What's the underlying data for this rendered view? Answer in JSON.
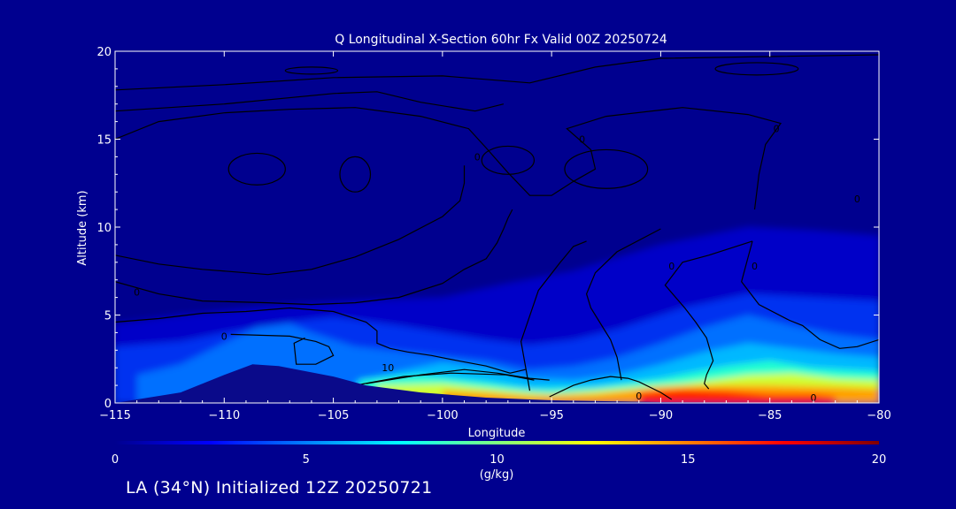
{
  "chart_data": {
    "type": "heatmap",
    "title": "Q Longitudinal X-Section 60hr  Fx Valid 00Z 20250724",
    "xlabel": "Longitude",
    "ylabel": "Altitude (km)",
    "xlim": [
      -115,
      -80
    ],
    "ylim": [
      0,
      20
    ],
    "x_ticks": [
      -115,
      -110,
      -105,
      -100,
      -95,
      -90,
      -85,
      -80
    ],
    "x_tick_labels": [
      "−115",
      "−110",
      "−105",
      "−100",
      "−95",
      "−90",
      "−85",
      "−80"
    ],
    "y_ticks": [
      0,
      5,
      10,
      15,
      20
    ],
    "y_tick_labels": [
      "0",
      "5",
      "10",
      "15",
      "20"
    ],
    "terrain": [
      {
        "lon": -115,
        "alt": 0.0
      },
      {
        "lon": -112,
        "alt": 0.6
      },
      {
        "lon": -110,
        "alt": 1.6
      },
      {
        "lon": -108.7,
        "alt": 2.2
      },
      {
        "lon": -107.5,
        "alt": 2.1
      },
      {
        "lon": -105,
        "alt": 1.5
      },
      {
        "lon": -103.5,
        "alt": 1.0
      },
      {
        "lon": -101,
        "alt": 0.6
      },
      {
        "lon": -98,
        "alt": 0.3
      },
      {
        "lon": -95,
        "alt": 0.15
      },
      {
        "lon": -90,
        "alt": 0.05
      },
      {
        "lon": -80,
        "alt": 0.0
      }
    ],
    "moisture_layers": [
      {
        "level": 1,
        "points": [
          [
            -115,
            0
          ],
          [
            -115,
            4.5
          ],
          [
            -112,
            5
          ],
          [
            -108,
            5.5
          ],
          [
            -104,
            5.8
          ],
          [
            -100,
            6
          ],
          [
            -97,
            6.8
          ],
          [
            -94,
            7.5
          ],
          [
            -90,
            9
          ],
          [
            -86,
            10
          ],
          [
            -83,
            9.8
          ],
          [
            -80,
            9.5
          ],
          [
            -80,
            0
          ]
        ]
      },
      {
        "level": 2,
        "points": [
          [
            -115,
            0
          ],
          [
            -115,
            3.2
          ],
          [
            -112,
            3.5
          ],
          [
            -110,
            4
          ],
          [
            -107,
            4.6
          ],
          [
            -105,
            4.9
          ],
          [
            -102,
            4.4
          ],
          [
            -100,
            4.0
          ],
          [
            -98,
            3.6
          ],
          [
            -96,
            3.3
          ],
          [
            -94,
            3.6
          ],
          [
            -92,
            4.2
          ],
          [
            -89,
            5.4
          ],
          [
            -86,
            6.2
          ],
          [
            -83,
            6.0
          ],
          [
            -80,
            5.8
          ],
          [
            -80,
            0
          ]
        ]
      },
      {
        "level": 3,
        "points": [
          [
            -114,
            0
          ],
          [
            -114,
            1.6
          ],
          [
            -112,
            2.2
          ],
          [
            -110,
            3.4
          ],
          [
            -108.5,
            4.3
          ],
          [
            -107,
            4.5
          ],
          [
            -106,
            4.0
          ],
          [
            -104,
            3.2
          ],
          [
            -101,
            2.8
          ],
          [
            -98,
            2.4
          ],
          [
            -96,
            1.9
          ],
          [
            -94,
            2.1
          ],
          [
            -92,
            2.6
          ],
          [
            -90,
            3.4
          ],
          [
            -88,
            4.3
          ],
          [
            -86,
            5.0
          ],
          [
            -84,
            4.4
          ],
          [
            -82,
            3.9
          ],
          [
            -80,
            3.6
          ],
          [
            -80,
            0
          ]
        ]
      },
      {
        "level": 4,
        "points": [
          [
            -104,
            1.2
          ],
          [
            -102,
            1.8
          ],
          [
            -100,
            2.3
          ],
          [
            -98,
            2.0
          ],
          [
            -96,
            1.4
          ],
          [
            -94,
            1.3
          ],
          [
            -92,
            1.6
          ],
          [
            -90,
            2.2
          ],
          [
            -88,
            2.9
          ],
          [
            -86,
            3.4
          ],
          [
            -84,
            3.1
          ],
          [
            -82,
            2.8
          ],
          [
            -80,
            2.6
          ],
          [
            -80,
            0
          ],
          [
            -104,
            0
          ]
        ]
      },
      {
        "level": 5,
        "points": [
          [
            -103.8,
            1.3
          ],
          [
            -101,
            1.6
          ],
          [
            -98,
            1.2
          ],
          [
            -96,
            0.8
          ],
          [
            -93,
            0.9
          ],
          [
            -90,
            1.4
          ],
          [
            -87,
            2.1
          ],
          [
            -85,
            2.4
          ],
          [
            -83,
            2.0
          ],
          [
            -80,
            1.8
          ],
          [
            -80,
            0
          ],
          [
            -103.8,
            0
          ]
        ]
      },
      {
        "level": 6,
        "points": [
          [
            -103,
            1.0
          ],
          [
            -100,
            1.1
          ],
          [
            -97,
            0.7
          ],
          [
            -95,
            0.5
          ],
          [
            -92,
            0.8
          ],
          [
            -89,
            1.1
          ],
          [
            -86,
            1.6
          ],
          [
            -84,
            1.7
          ],
          [
            -82,
            1.4
          ],
          [
            -80,
            1.3
          ],
          [
            -80,
            0
          ],
          [
            -103,
            0
          ]
        ]
      },
      {
        "level": 7,
        "points": [
          [
            -100,
            0.7
          ],
          [
            -98,
            0.6
          ],
          [
            -96,
            0.4
          ],
          [
            -93,
            0.5
          ],
          [
            -90,
            0.9
          ],
          [
            -87,
            1.0
          ],
          [
            -85,
            1.0
          ],
          [
            -82,
            0.9
          ],
          [
            -80,
            0.8
          ],
          [
            -80,
            0
          ],
          [
            -100,
            0
          ]
        ]
      },
      {
        "level": 8,
        "points": [
          [
            -91,
            0.6
          ],
          [
            -89,
            0.8
          ],
          [
            -87,
            0.7
          ],
          [
            -85,
            0.5
          ],
          [
            -83,
            0.5
          ],
          [
            -82,
            0.35
          ],
          [
            -82,
            0
          ],
          [
            -91,
            0
          ]
        ]
      }
    ],
    "contours": [
      [
        [
          -115,
          17.8
        ],
        [
          -110,
          18.1
        ],
        [
          -105,
          18.5
        ],
        [
          -100,
          18.6
        ],
        [
          -96,
          18.2
        ],
        [
          -93,
          19.1
        ],
        [
          -90,
          19.6
        ],
        [
          -85,
          19.7
        ],
        [
          -80,
          19.8
        ]
      ],
      [
        [
          -115,
          16.6
        ],
        [
          -110,
          17
        ],
        [
          -105,
          17.6
        ],
        [
          -103,
          17.7
        ],
        [
          -101,
          17.1
        ],
        [
          -98.5,
          16.6
        ],
        [
          -97.2,
          17
        ]
      ],
      [
        [
          -115,
          15
        ],
        [
          -113,
          16
        ],
        [
          -110,
          16.5
        ],
        [
          -107,
          16.7
        ],
        [
          -104,
          16.8
        ],
        [
          -101,
          16.3
        ],
        [
          -98.8,
          15.6
        ],
        [
          -98,
          14.5
        ],
        [
          -97,
          13.1
        ],
        [
          -96,
          11.8
        ],
        [
          -95,
          11.8
        ],
        [
          -94,
          12.6
        ],
        [
          -93,
          13.3
        ],
        [
          -93.2,
          14.4
        ],
        [
          -94.3,
          15.6
        ],
        [
          -92.5,
          16.3
        ],
        [
          -89,
          16.8
        ],
        [
          -86,
          16.4
        ],
        [
          -84.5,
          15.9
        ],
        [
          -85.2,
          14.7
        ],
        [
          -85.5,
          13
        ],
        [
          -85.7,
          11
        ]
      ],
      [
        [
          -115,
          8.4
        ],
        [
          -113,
          7.9
        ],
        [
          -111,
          7.6
        ],
        [
          -109,
          7.4
        ],
        [
          -108,
          7.3
        ],
        [
          -106,
          7.6
        ],
        [
          -104,
          8.3
        ],
        [
          -102,
          9.3
        ],
        [
          -100,
          10.6
        ],
        [
          -99.2,
          11.5
        ],
        [
          -99,
          12.5
        ],
        [
          -99,
          13.5
        ]
      ],
      [
        [
          -115,
          6.9
        ],
        [
          -113,
          6.2
        ],
        [
          -111,
          5.8
        ],
        [
          -108,
          5.7
        ],
        [
          -106,
          5.6
        ],
        [
          -104,
          5.7
        ],
        [
          -102,
          6
        ],
        [
          -100,
          6.8
        ],
        [
          -99,
          7.6
        ],
        [
          -98,
          8.2
        ],
        [
          -97.5,
          9.1
        ],
        [
          -97.2,
          9.9
        ],
        [
          -97,
          10.5
        ],
        [
          -96.8,
          11
        ]
      ],
      [
        [
          -115,
          4.6
        ],
        [
          -113,
          4.8
        ],
        [
          -111,
          5.1
        ],
        [
          -109,
          5.2
        ],
        [
          -107,
          5.4
        ],
        [
          -105,
          5.2
        ],
        [
          -103.5,
          4.6
        ],
        [
          -103,
          4.1
        ],
        [
          -103,
          3.4
        ],
        [
          -102.4,
          3.1
        ],
        [
          -101.6,
          2.9
        ],
        [
          -100.5,
          2.7
        ],
        [
          -99.3,
          2.4
        ],
        [
          -98,
          2.1
        ],
        [
          -96.9,
          1.7
        ],
        [
          -96.2,
          1.9
        ]
      ],
      [
        [
          -109.7,
          3.9
        ],
        [
          -107,
          3.8
        ],
        [
          -105.8,
          3.5
        ],
        [
          -105.2,
          3.2
        ],
        [
          -105,
          2.7
        ],
        [
          -105.8,
          2.2
        ],
        [
          -106.7,
          2.2
        ],
        [
          -106.8,
          3.4
        ],
        [
          -106.3,
          3.7
        ]
      ],
      [
        [
          -103.5,
          1.1
        ],
        [
          -101,
          1.6
        ],
        [
          -99,
          1.9
        ],
        [
          -97.5,
          1.7
        ],
        [
          -96,
          1.4
        ],
        [
          -95.1,
          1.3
        ]
      ],
      [
        [
          -95.1,
          0.35
        ],
        [
          -94,
          1.0
        ],
        [
          -93.2,
          1.3
        ],
        [
          -92.3,
          1.5
        ],
        [
          -91.5,
          1.4
        ],
        [
          -91,
          1.2
        ],
        [
          -90,
          0.6
        ],
        [
          -89.5,
          0.2
        ]
      ],
      [
        [
          -96,
          0.7
        ],
        [
          -96.4,
          3.5
        ],
        [
          -95.6,
          6.4
        ],
        [
          -94.6,
          8
        ],
        [
          -94,
          8.9
        ],
        [
          -93.4,
          9.2
        ]
      ],
      [
        [
          -90,
          9.9
        ],
        [
          -92,
          8.6
        ],
        [
          -93,
          7.4
        ],
        [
          -93.4,
          6.2
        ],
        [
          -93.2,
          5.4
        ],
        [
          -92.8,
          4.6
        ],
        [
          -92.3,
          3.6
        ],
        [
          -92,
          2.6
        ],
        [
          -91.8,
          1.3
        ]
      ],
      [
        [
          -85.8,
          9.2
        ],
        [
          -87.8,
          8.4
        ],
        [
          -89,
          8
        ],
        [
          -89.8,
          6.7
        ],
        [
          -88.9,
          5.4
        ],
        [
          -88.4,
          4.6
        ],
        [
          -87.9,
          3.7
        ],
        [
          -87.6,
          2.4
        ],
        [
          -87.9,
          1.6
        ],
        [
          -88,
          1.1
        ],
        [
          -87.8,
          0.8
        ]
      ],
      [
        [
          -85.8,
          9.2
        ],
        [
          -86.3,
          6.9
        ],
        [
          -85.5,
          5.6
        ],
        [
          -84.1,
          4.7
        ],
        [
          -83.5,
          4.4
        ],
        [
          -82.7,
          3.6
        ],
        [
          -81.8,
          3.1
        ],
        [
          -81,
          3.2
        ],
        [
          -80,
          3.6
        ]
      ],
      [
        [
          -104,
          1.0
        ],
        [
          -101.8,
          1.5
        ],
        [
          -99.6,
          1.7
        ],
        [
          -97.1,
          1.6
        ],
        [
          -95.8,
          1.3
        ]
      ]
    ],
    "contour_labels": [
      {
        "lon": -102.5,
        "alt": 2.0,
        "text": "10"
      },
      {
        "lon": -114,
        "alt": 6.3,
        "text": "0"
      },
      {
        "lon": -110,
        "alt": 3.8,
        "text": "0"
      },
      {
        "lon": -91,
        "alt": 0.4,
        "text": "0"
      },
      {
        "lon": -84.7,
        "alt": 15.6,
        "text": "0"
      },
      {
        "lon": -93.6,
        "alt": 15.0,
        "text": "0"
      },
      {
        "lon": -98.4,
        "alt": 14.0,
        "text": "0"
      },
      {
        "lon": -89.5,
        "alt": 7.8,
        "text": "0"
      },
      {
        "lon": -85.7,
        "alt": 7.8,
        "text": "0"
      },
      {
        "lon": -81,
        "alt": 11.6,
        "text": "0"
      },
      {
        "lon": -83,
        "alt": 0.3,
        "text": "0"
      }
    ],
    "colorbar": {
      "min": 0,
      "max": 20,
      "ticks": [
        0,
        5,
        10,
        15,
        20
      ],
      "tick_labels": [
        "0",
        "5",
        "10",
        "15",
        "20"
      ],
      "label": "(g/kg)",
      "colors": [
        "#00008f",
        "#0000ff",
        "#0080ff",
        "#00ffff",
        "#80ff80",
        "#ffff00",
        "#ff8000",
        "#ff0000",
        "#800000"
      ]
    }
  },
  "footer_text": "LA (34°N) Initialized 12Z 20250721",
  "colors": {
    "background": "#00008f",
    "terrain": "#0a0a8a",
    "contour": "#000000",
    "text": "#ffffff",
    "moisture_levels": [
      "#00008f",
      "#0000c8",
      "#0030f0",
      "#0070ff",
      "#00b8ff",
      "#20ffd0",
      "#d0ff30",
      "#ffa000",
      "#ff2000",
      "#c80000"
    ]
  }
}
